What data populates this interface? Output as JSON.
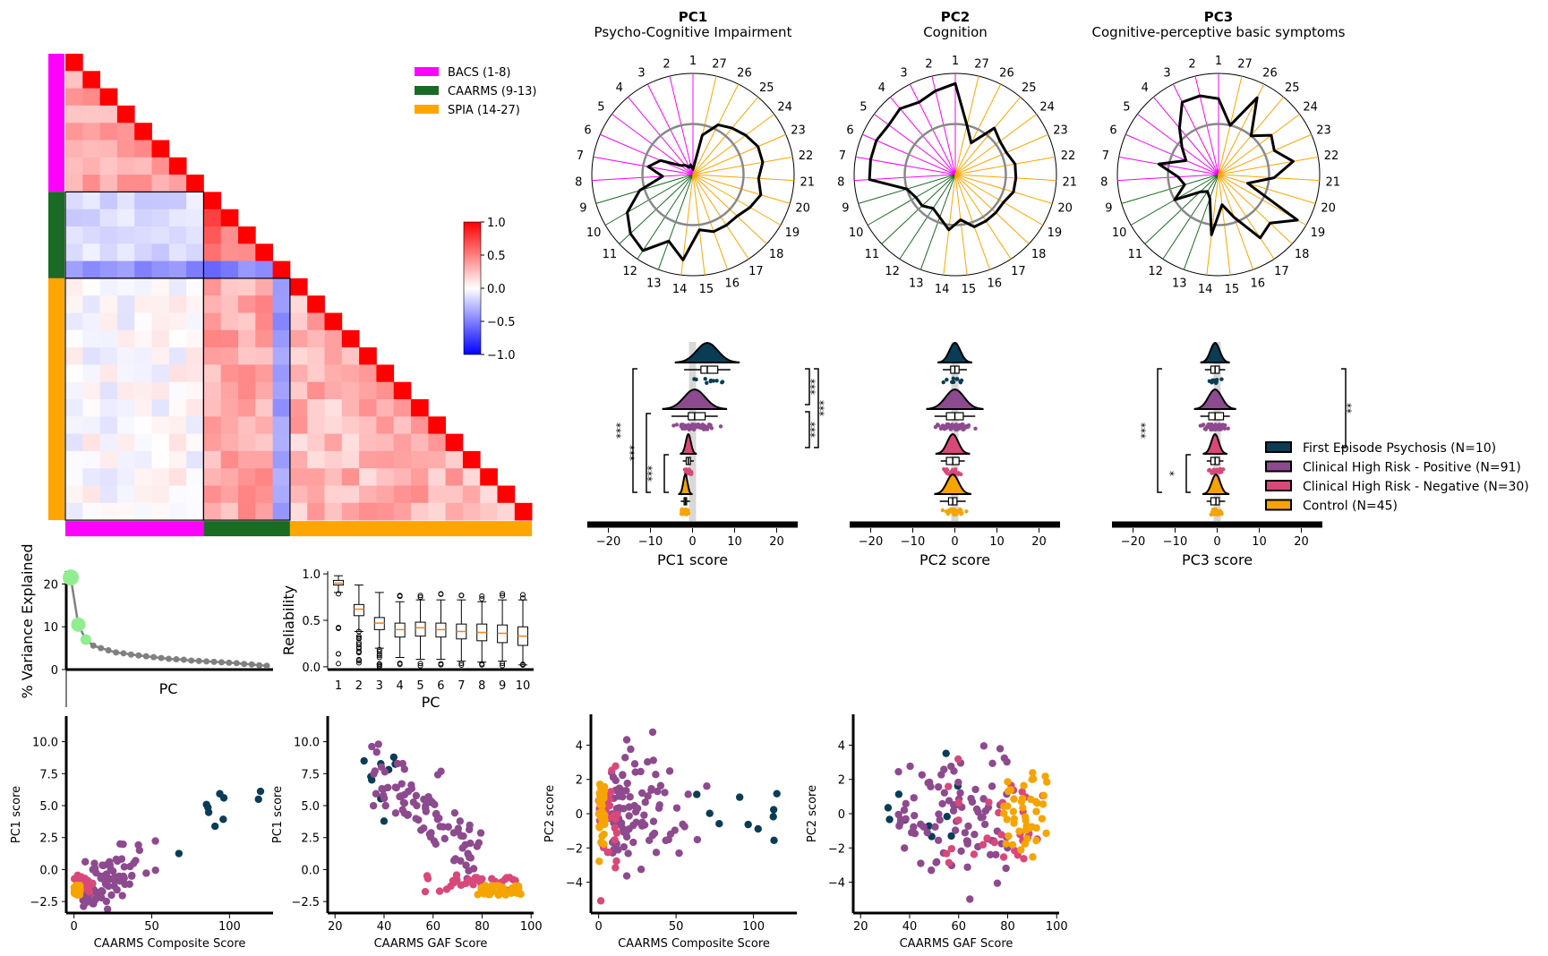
{
  "colors": {
    "bacs": "#ff00ff",
    "caarms": "#1a6b23",
    "spia": "#ffa500",
    "fep": "#0a3d55",
    "chr_pos": "#8e4a8e",
    "chr_neg": "#d9487a",
    "control": "#f5a400",
    "scree_highlight": "#90ee90",
    "scree_line": "#808080"
  },
  "correlation_matrix": {
    "legend": [
      "BACS (1-8)",
      "CAARMS (9-13)",
      "SPIA (14-27)"
    ],
    "colorbar_ticks": [
      "1.0",
      "0.5",
      "0.0",
      "−0.5",
      "−1.0"
    ],
    "n_items": 27,
    "blocks": [
      8,
      5,
      14
    ]
  },
  "radar": [
    {
      "title": "PC1",
      "subtitle": "Psycho-Cognitive Impairment",
      "labels": [
        "1",
        "2",
        "3",
        "4",
        "5",
        "6",
        "7",
        "8",
        "9",
        "10",
        "11",
        "12",
        "13",
        "14",
        "15",
        "16",
        "17",
        "18",
        "19",
        "20",
        "21",
        "22",
        "23",
        "24",
        "25",
        "26",
        "27"
      ],
      "loadings": [
        0.05,
        0.1,
        0.08,
        0.12,
        0.15,
        0.35,
        0.45,
        0.3,
        0.55,
        0.75,
        0.85,
        0.9,
        0.7,
        0.85,
        0.55,
        0.6,
        0.6,
        0.6,
        0.65,
        0.7,
        0.65,
        0.7,
        0.7,
        0.65,
        0.6,
        0.55,
        0.4
      ]
    },
    {
      "title": "PC2",
      "subtitle": "Cognition",
      "labels": [
        "1",
        "2",
        "3",
        "4",
        "5",
        "6",
        "7",
        "8",
        "9",
        "10",
        "11",
        "12",
        "13",
        "14",
        "15",
        "16",
        "17",
        "18",
        "19",
        "20",
        "21",
        "22",
        "23",
        "24",
        "25",
        "26",
        "27"
      ],
      "loadings": [
        0.9,
        0.85,
        0.8,
        0.85,
        0.82,
        0.85,
        0.85,
        0.85,
        0.5,
        0.45,
        0.45,
        0.4,
        0.45,
        0.55,
        0.45,
        0.55,
        0.55,
        0.55,
        0.55,
        0.6,
        0.6,
        0.6,
        0.55,
        0.55,
        0.6,
        0.35,
        0.5
      ]
    },
    {
      "title": "PC3",
      "subtitle": "Cognitive-perceptive basic symptoms",
      "labels": [
        "1",
        "2",
        "3",
        "4",
        "5",
        "6",
        "7",
        "8",
        "9",
        "10",
        "11",
        "12",
        "13",
        "14",
        "15",
        "16",
        "17",
        "18",
        "19",
        "20",
        "21",
        "22",
        "23",
        "24",
        "25",
        "26",
        "27"
      ],
      "loadings": [
        0.75,
        0.8,
        0.8,
        0.6,
        0.45,
        0.35,
        0.6,
        0.4,
        0.35,
        0.5,
        0.25,
        0.2,
        0.25,
        0.6,
        0.3,
        0.45,
        0.75,
        0.7,
        0.9,
        0.3,
        0.55,
        0.75,
        0.6,
        0.65,
        0.5,
        0.85,
        0.5
      ]
    }
  ],
  "raincloud": {
    "xlabels": [
      "PC1 score",
      "PC2 score",
      "PC3 score"
    ],
    "xticks": [
      "−20",
      "−10",
      "0",
      "10",
      "20"
    ],
    "legend": [
      "First Episode Psychosis (N=10)",
      "Clinical High Risk - Positive (N=91)",
      "Clinical High Risk - Negative (N=30)",
      "Control (N=45)"
    ],
    "sig": {
      "pc1_left": [
        "***",
        "***",
        "***"
      ],
      "pc1_right": [
        "***",
        "***",
        "***"
      ],
      "pc3_left": [
        "***",
        "*"
      ],
      "pc3_right": [
        "**"
      ]
    }
  },
  "chart_data": [
    {
      "type": "line",
      "title": "",
      "xlabel": "PC",
      "ylabel": "% Variance Explained",
      "y_ticks": [
        "0",
        "10",
        "20"
      ],
      "x": [
        1,
        2,
        3,
        4,
        5,
        6,
        7,
        8,
        9,
        10,
        11,
        12,
        13,
        14,
        15,
        16,
        17,
        18,
        19,
        20,
        21,
        22,
        23,
        24,
        25,
        26,
        27
      ],
      "values": [
        21.5,
        10.5,
        7.0,
        5.6,
        5.0,
        4.5,
        4.0,
        3.8,
        3.5,
        3.3,
        3.1,
        2.9,
        2.7,
        2.5,
        2.4,
        2.3,
        2.1,
        2.0,
        1.9,
        1.8,
        1.7,
        1.6,
        1.5,
        1.3,
        1.2,
        1.0,
        0.9
      ],
      "ylim": [
        0,
        23
      ]
    },
    {
      "type": "box",
      "title": "",
      "xlabel": "PC",
      "ylabel": "Reliability",
      "categories": [
        "1",
        "2",
        "3",
        "4",
        "5",
        "6",
        "7",
        "8",
        "9",
        "10"
      ],
      "y_ticks": [
        "0.0",
        "0.5",
        "1.0"
      ],
      "medians": [
        0.9,
        0.62,
        0.47,
        0.4,
        0.42,
        0.4,
        0.38,
        0.37,
        0.36,
        0.33
      ],
      "q1": [
        0.88,
        0.55,
        0.4,
        0.32,
        0.33,
        0.32,
        0.3,
        0.28,
        0.26,
        0.23
      ],
      "q3": [
        0.93,
        0.67,
        0.53,
        0.47,
        0.48,
        0.47,
        0.46,
        0.46,
        0.45,
        0.43
      ],
      "whisker_low": [
        0.8,
        0.38,
        0.2,
        0.1,
        0.08,
        0.08,
        0.06,
        0.05,
        0.06,
        0.02
      ],
      "whisker_high": [
        0.98,
        0.88,
        0.8,
        0.7,
        0.72,
        0.72,
        0.72,
        0.7,
        0.72,
        0.72
      ],
      "ylim": [
        -0.03,
        1.03
      ]
    },
    {
      "type": "scatter",
      "title": "",
      "xlabel": "CAARMS Composite Score",
      "ylabel": "PC1 score",
      "x_ticks": [
        "0",
        "50",
        "100"
      ],
      "y_ticks": [
        "−2.5",
        "0.0",
        "2.5",
        "5.0",
        "7.5",
        "10.0"
      ],
      "xlim": [
        -5,
        128
      ],
      "ylim": [
        -3.4,
        12.0
      ]
    },
    {
      "type": "scatter",
      "title": "",
      "xlabel": "CAARMS GAF Score",
      "ylabel": "PC1 score",
      "x_ticks": [
        "20",
        "40",
        "60",
        "80",
        "100"
      ],
      "y_ticks": [
        "−2.5",
        "0.0",
        "2.5",
        "5.0",
        "7.5",
        "10.0"
      ],
      "xlim": [
        17,
        101
      ],
      "ylim": [
        -3.4,
        12.0
      ]
    },
    {
      "type": "scatter",
      "title": "",
      "xlabel": "CAARMS Composite Score",
      "ylabel": "PC2 score",
      "x_ticks": [
        "0",
        "50",
        "100"
      ],
      "y_ticks": [
        "−4",
        "−2",
        "0",
        "2",
        "4"
      ],
      "xlim": [
        -5,
        128
      ],
      "ylim": [
        -5.8,
        5.8
      ]
    },
    {
      "type": "scatter",
      "title": "",
      "xlabel": "CAARMS GAF Score",
      "ylabel": "PC2 score",
      "x_ticks": [
        "20",
        "40",
        "60",
        "80",
        "100"
      ],
      "y_ticks": [
        "−4",
        "−2",
        "0",
        "2",
        "4"
      ],
      "xlim": [
        17,
        101
      ],
      "ylim": [
        -5.8,
        5.8
      ]
    }
  ]
}
